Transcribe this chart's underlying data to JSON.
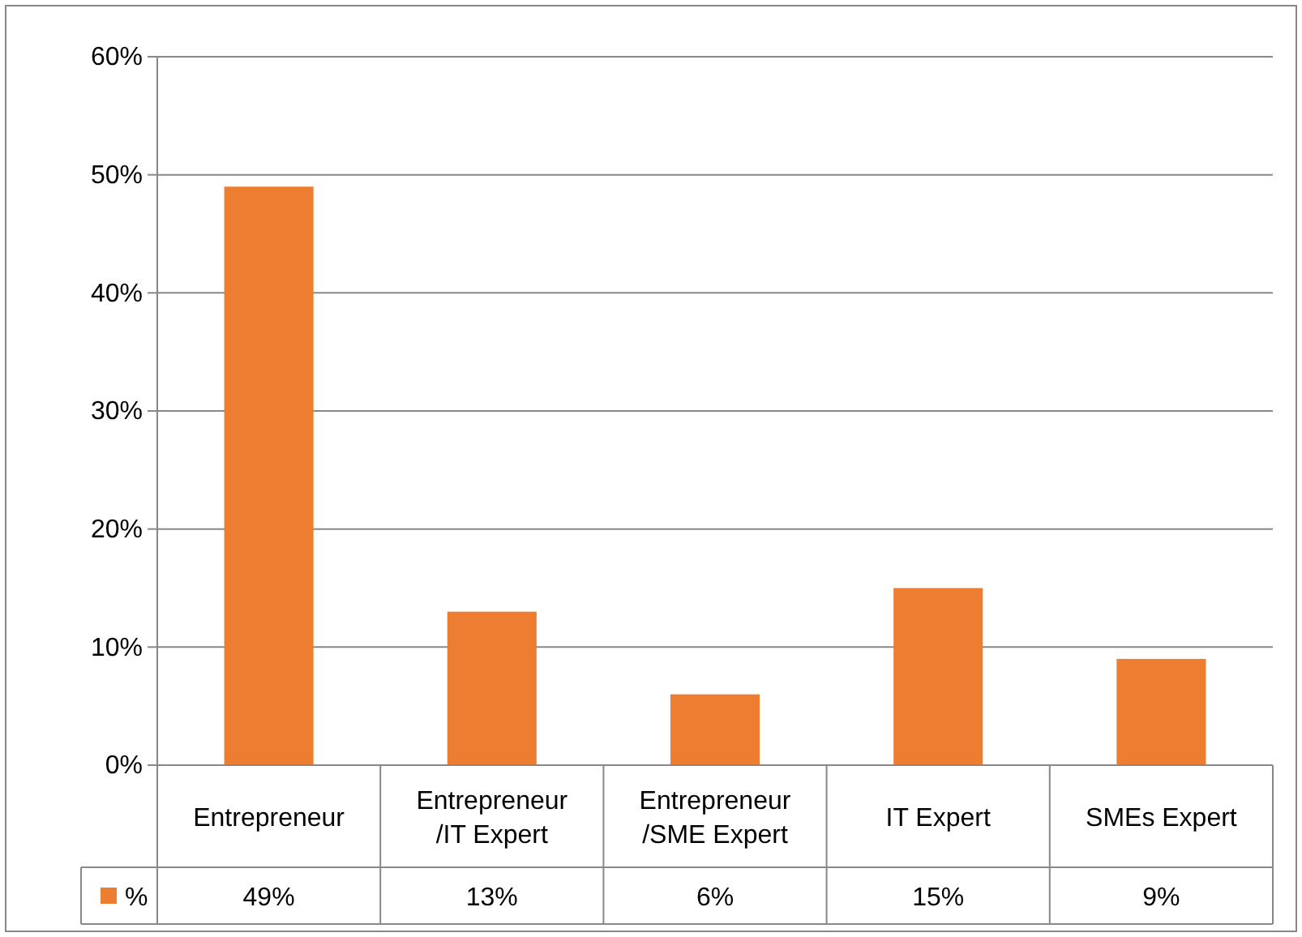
{
  "chart_data": {
    "type": "bar",
    "categories": [
      "Entrepreneur",
      "Entrepreneur\n/IT Expert",
      "Entrepreneur\n/SME Expert",
      "IT Expert",
      "SMEs Expert"
    ],
    "series": [
      {
        "name": "%",
        "color": "#ed7d31",
        "values": [
          49,
          13,
          6,
          15,
          9
        ],
        "value_labels": [
          "49%",
          "13%",
          "6%",
          "15%",
          "9%"
        ]
      }
    ],
    "ylim": [
      0,
      60
    ],
    "yticks": [
      {
        "value": 0,
        "label": "0%"
      },
      {
        "value": 10,
        "label": "10%"
      },
      {
        "value": 20,
        "label": "20%"
      },
      {
        "value": 30,
        "label": "30%"
      },
      {
        "value": 40,
        "label": "40%"
      },
      {
        "value": 50,
        "label": "50%"
      },
      {
        "value": 60,
        "label": "60%"
      }
    ],
    "grid": "y",
    "legend": "bottom"
  }
}
